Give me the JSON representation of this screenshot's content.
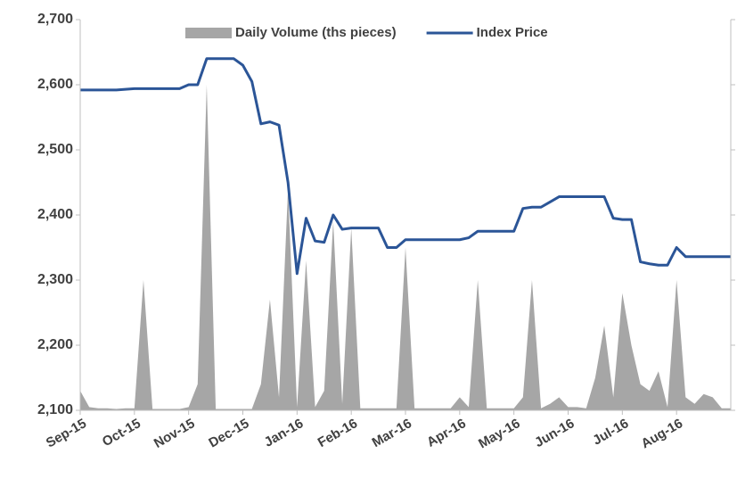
{
  "chart_data": {
    "type": "line",
    "categories": [
      "Sep-15",
      null,
      null,
      null,
      null,
      null,
      "Oct-15",
      null,
      null,
      null,
      null,
      null,
      "Nov-15",
      null,
      null,
      null,
      null,
      null,
      "Dec-15",
      null,
      null,
      null,
      null,
      null,
      "Jan-16",
      null,
      null,
      null,
      null,
      null,
      "Feb-16",
      null,
      null,
      null,
      null,
      null,
      "Mar-16",
      null,
      null,
      null,
      null,
      null,
      "Apr-16",
      null,
      null,
      null,
      null,
      null,
      "May-16",
      null,
      null,
      null,
      null,
      null,
      "Jun-16",
      null,
      null,
      null,
      null,
      null,
      "Jul-16",
      null,
      null,
      null,
      null,
      null,
      "Aug-16",
      null,
      null,
      null,
      null,
      null,
      null
    ],
    "series": [
      {
        "name": "Daily Volume (ths pieces)",
        "type": "area",
        "color": "#a6a6a6",
        "axis": "y2",
        "values": [
          30,
          5,
          3,
          3,
          2,
          3,
          3,
          200,
          2,
          2,
          2,
          2,
          5,
          40,
          500,
          2,
          2,
          2,
          2,
          2,
          40,
          170,
          20,
          340,
          5,
          230,
          5,
          30,
          290,
          10,
          280,
          3,
          3,
          3,
          3,
          3,
          250,
          3,
          3,
          3,
          3,
          3,
          20,
          5,
          200,
          3,
          3,
          3,
          3,
          20,
          200,
          3,
          10,
          20,
          5,
          5,
          3,
          50,
          130,
          20,
          180,
          100,
          40,
          30,
          60,
          5,
          200,
          20,
          10,
          25,
          20,
          3,
          3
        ]
      },
      {
        "name": "Index Price",
        "type": "line",
        "color": "#2b5597",
        "values": [
          2592,
          2592,
          2592,
          2592,
          2592,
          2593,
          2594,
          2594,
          2594,
          2594,
          2594,
          2594,
          2600,
          2600,
          2640,
          2640,
          2640,
          2640,
          2630,
          2605,
          2540,
          2543,
          2538,
          2450,
          2310,
          2395,
          2360,
          2358,
          2400,
          2378,
          2380,
          2380,
          2380,
          2380,
          2350,
          2350,
          2362,
          2362,
          2362,
          2362,
          2362,
          2362,
          2362,
          2365,
          2375,
          2375,
          2375,
          2375,
          2375,
          2410,
          2412,
          2412,
          2420,
          2428,
          2428,
          2428,
          2428,
          2428,
          2428,
          2395,
          2393,
          2393,
          2328,
          2325,
          2323,
          2323,
          2350,
          2336,
          2336,
          2336,
          2336,
          2336,
          2336
        ]
      }
    ],
    "ylim": [
      2100,
      2700
    ],
    "yticks": [
      {
        "value": 2100,
        "label": "2,100"
      },
      {
        "value": 2200,
        "label": "2,200"
      },
      {
        "value": 2300,
        "label": "2,300"
      },
      {
        "value": 2400,
        "label": "2,400"
      },
      {
        "value": 2500,
        "label": "2,500"
      },
      {
        "value": 2600,
        "label": "2,600"
      },
      {
        "value": 2700,
        "label": "2,700"
      }
    ],
    "y2lim": [
      0,
      600
    ],
    "y2ticks": [
      0,
      100,
      200,
      300,
      400,
      500,
      600
    ],
    "grid": false,
    "legend": "top"
  }
}
